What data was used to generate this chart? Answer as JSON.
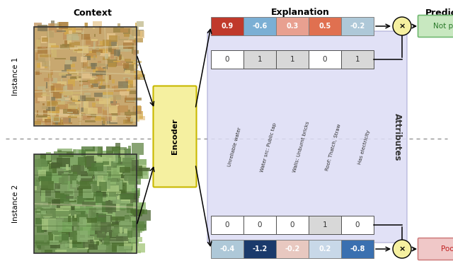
{
  "headers": [
    "Context",
    "Explanation",
    "Prediction"
  ],
  "instance_labels": [
    "Instance 1",
    "Instance 2"
  ],
  "explanation_row1": [
    0.9,
    -0.6,
    0.3,
    0.5,
    -0.2
  ],
  "explanation_row2": [
    -0.4,
    -1.2,
    -0.2,
    0.2,
    -0.8
  ],
  "attribute_row1": [
    0,
    1,
    1,
    0,
    1
  ],
  "attribute_row2": [
    0,
    0,
    0,
    1,
    0
  ],
  "attribute_labels": [
    "Unreliable water",
    "Water src: Public tap",
    "Walls: Unburnt bricks",
    "Roof: Thatch, Straw",
    "Has electricity"
  ],
  "prediction_row1": "Not poor",
  "prediction_row2": "Poor",
  "expl_colors_row1": [
    "#c0392b",
    "#7bafd4",
    "#e8a090",
    "#e07050",
    "#aec8d8"
  ],
  "expl_colors_row2": [
    "#aec8d8",
    "#1a3a6b",
    "#e8c8c0",
    "#c8d8e8",
    "#3a70b0"
  ],
  "bg_color": "#ffffff",
  "attr_bg_color": "#dcdcf5",
  "encoder_color": "#f5f0a0",
  "encoder_edge_color": "#c8b800",
  "notpoor_box_color": "#c8e8c0",
  "poor_box_color": "#f0c8c8",
  "notpoor_text_color": "#2a7a2a",
  "poor_text_color": "#c02020",
  "notpoor_edge_color": "#70b870",
  "poor_edge_color": "#d08080"
}
